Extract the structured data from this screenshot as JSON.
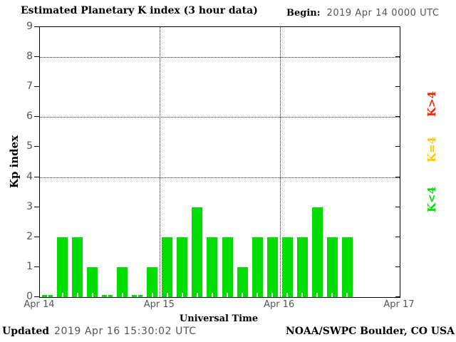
{
  "header": {
    "begin_label": "Begin:",
    "begin_value": "2019 Apr 14 0000 UTC"
  },
  "chart_data": {
    "type": "bar",
    "title": "Estimated Planetary K index (3 hour data)",
    "xlabel": "Universal Time",
    "ylabel": "Kp index",
    "ylim": [
      0,
      9
    ],
    "yticks": [
      0,
      1,
      2,
      3,
      4,
      5,
      6,
      7,
      8,
      9
    ],
    "grid_y": [
      4,
      6,
      8
    ],
    "grid_on": true,
    "bin_hours": 3,
    "bins_per_day": 8,
    "x_day_labels": [
      "Apr 14",
      "Apr 15",
      "Apr 16",
      "Apr 17"
    ],
    "series": [
      {
        "day": "Apr 14",
        "values": [
          0,
          2,
          2,
          1,
          0,
          1,
          0,
          1
        ]
      },
      {
        "day": "Apr 15",
        "values": [
          2,
          2,
          3,
          2,
          2,
          1,
          2,
          2
        ]
      },
      {
        "day": "Apr 16",
        "values": [
          2,
          2,
          3,
          2,
          2
        ]
      }
    ],
    "bar_color": "#00dd00",
    "legend_position": "right",
    "legend": [
      {
        "label": "K>4",
        "color": "#ff2200"
      },
      {
        "label": "K=4",
        "color": "#ffc800"
      },
      {
        "label": "K<4",
        "color": "#00dd00"
      }
    ]
  },
  "footer": {
    "updated_label": "Updated",
    "updated_value": "2019 Apr 16 15:30:02 UTC",
    "source": "NOAA/SWPC Boulder, CO USA"
  }
}
